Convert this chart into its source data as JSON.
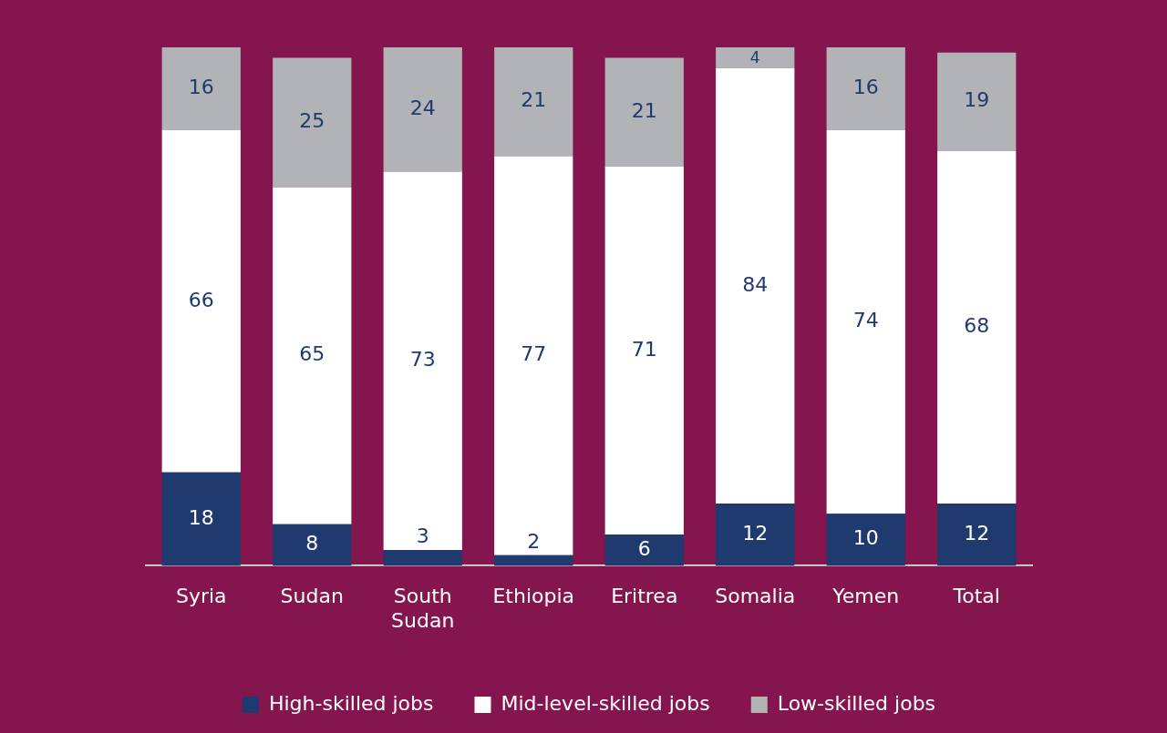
{
  "chart_data": {
    "type": "bar",
    "stacked": true,
    "data_labels": true,
    "legend": "bottom",
    "grid": false,
    "tick_labels": "x",
    "categories": [
      "Syria",
      "Sudan",
      "South Sudan",
      "Ethiopia",
      "Eritrea",
      "Somalia",
      "Yemen",
      "Total"
    ],
    "ylim": [
      0,
      100
    ],
    "series": [
      {
        "name": "High-skilled jobs",
        "color": "#1f3a6e",
        "values": [
          18,
          8,
          3,
          2,
          6,
          12,
          10,
          12
        ]
      },
      {
        "name": "Mid-level-skilled jobs",
        "color": "#ffffff",
        "values": [
          66,
          65,
          73,
          77,
          71,
          84,
          74,
          68
        ]
      },
      {
        "name": "Low-skilled jobs",
        "color": "#b1b3b6",
        "values": [
          16,
          25,
          24,
          21,
          21,
          4,
          16,
          19
        ]
      }
    ]
  }
}
